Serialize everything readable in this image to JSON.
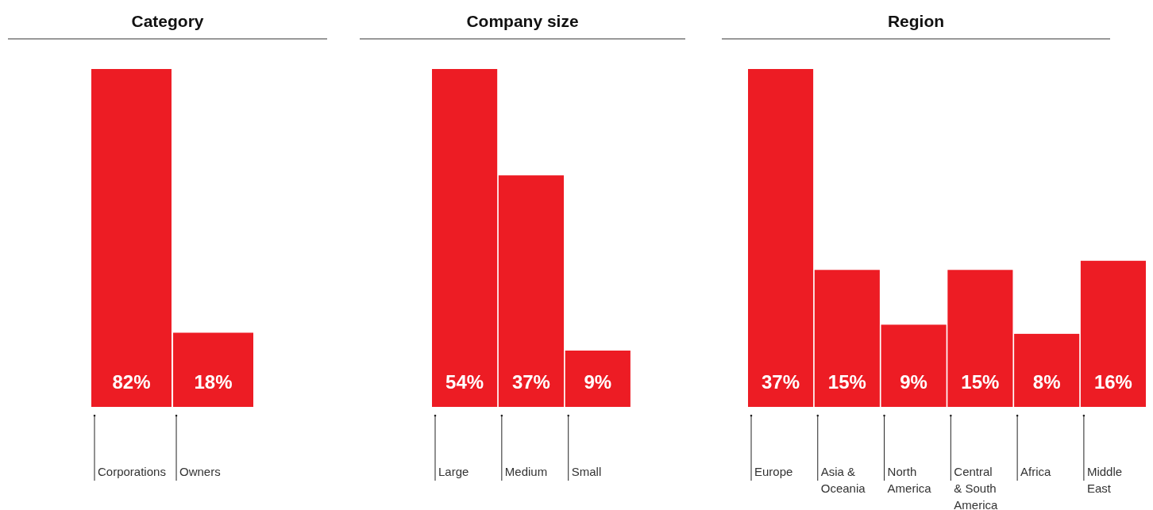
{
  "chart_data": [
    {
      "type": "bar",
      "title": "Category",
      "categories": [
        "Corporations",
        "Owners"
      ],
      "values": [
        82,
        18
      ],
      "value_labels": [
        "82%",
        "18%"
      ],
      "color": "#ed1c24"
    },
    {
      "type": "bar",
      "title": "Company size",
      "categories": [
        "Large",
        "Medium",
        "Small"
      ],
      "values": [
        54,
        37,
        9
      ],
      "value_labels": [
        "54%",
        "37%",
        "9%"
      ],
      "color": "#ed1c24"
    },
    {
      "type": "bar",
      "title": "Region",
      "categories": [
        "Europe",
        "Asia & Oceania",
        "North America",
        "Central & South America",
        "Africa",
        "Middle East"
      ],
      "values": [
        37,
        15,
        9,
        15,
        8,
        16
      ],
      "value_labels": [
        "37%",
        "15%",
        "9%",
        "15%",
        "8%",
        "16%"
      ],
      "color": "#ed1c24"
    }
  ]
}
